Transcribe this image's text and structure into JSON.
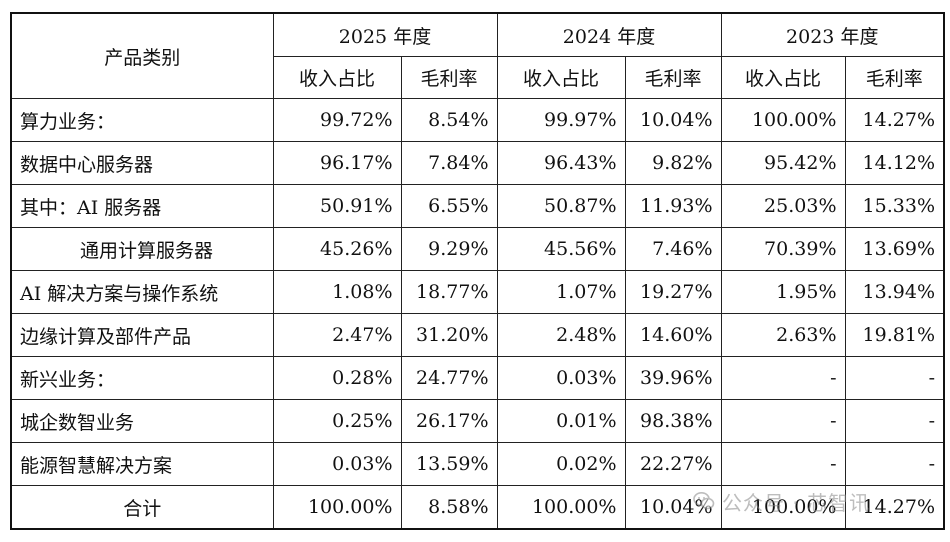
{
  "header": {
    "category": "产品类别",
    "years": [
      "2025 年度",
      "2024 年度",
      "2023 年度"
    ],
    "sub": [
      "收入占比",
      "毛利率"
    ]
  },
  "rows": [
    {
      "label": "算力业务：",
      "vals": [
        "99.72%",
        "8.54%",
        "99.97%",
        "10.04%",
        "100.00%",
        "14.27%"
      ]
    },
    {
      "label": "数据中心服务器",
      "vals": [
        "96.17%",
        "7.84%",
        "96.43%",
        "9.82%",
        "95.42%",
        "14.12%"
      ]
    },
    {
      "label": "其中：AI 服务器",
      "vals": [
        "50.91%",
        "6.55%",
        "50.87%",
        "11.93%",
        "25.03%",
        "15.33%"
      ]
    },
    {
      "label": "通用计算服务器",
      "vals": [
        "45.26%",
        "9.29%",
        "45.56%",
        "7.46%",
        "70.39%",
        "13.69%"
      ]
    },
    {
      "label": "AI 解决方案与操作系统",
      "vals": [
        "1.08%",
        "18.77%",
        "1.07%",
        "19.27%",
        "1.95%",
        "13.94%"
      ]
    },
    {
      "label": "边缘计算及部件产品",
      "vals": [
        "2.47%",
        "31.20%",
        "2.48%",
        "14.60%",
        "2.63%",
        "19.81%"
      ]
    },
    {
      "label": "新兴业务：",
      "vals": [
        "0.28%",
        "24.77%",
        "0.03%",
        "39.96%",
        "-",
        "-"
      ]
    },
    {
      "label": "城企数智业务",
      "vals": [
        "0.25%",
        "26.17%",
        "0.01%",
        "98.38%",
        "-",
        "-"
      ]
    },
    {
      "label": "能源智慧解决方案",
      "vals": [
        "0.03%",
        "13.59%",
        "0.02%",
        "22.27%",
        "-",
        "-"
      ]
    },
    {
      "label": "合计",
      "vals": [
        "100.00%",
        "8.58%",
        "100.00%",
        "10.04%",
        "100.00%",
        "14.27%"
      ]
    }
  ],
  "watermark": {
    "text": "公众号 · 芯智讯",
    "icon": "wechat-icon"
  }
}
